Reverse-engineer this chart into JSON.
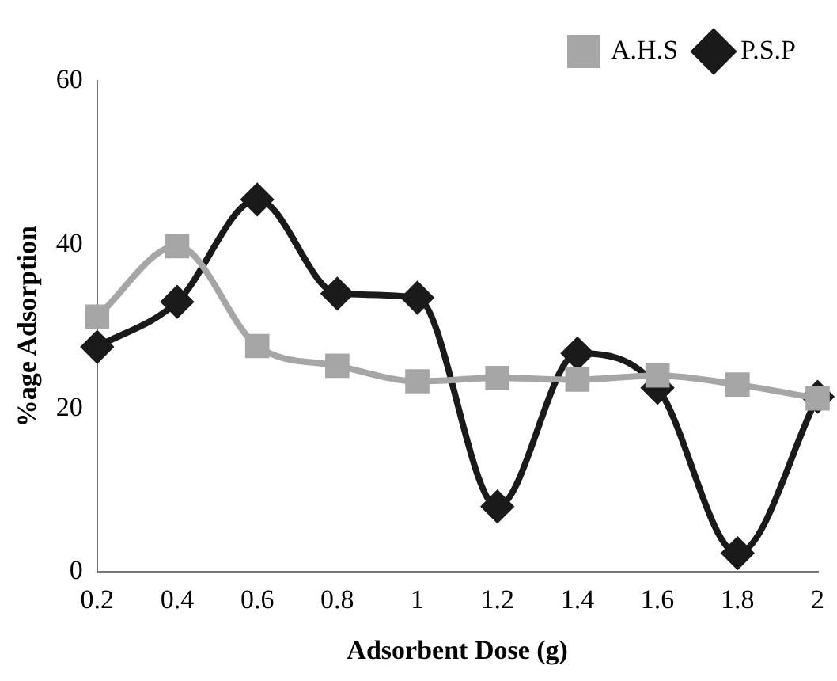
{
  "chart_data": {
    "type": "line",
    "xlabel": "Adsorbent Dose (g)",
    "ylabel": "%age Adsorption",
    "categories": [
      "0.2",
      "0.4",
      "0.6",
      "0.8",
      "1",
      "1.2",
      "1.4",
      "1.6",
      "1.8",
      "2"
    ],
    "series": [
      {
        "name": "P.S.P",
        "color": "#1a1a1a",
        "marker": "diamond",
        "values": [
          27.5,
          33,
          45.5,
          34,
          33.5,
          8,
          26.7,
          22.5,
          2.3,
          21.4
        ]
      },
      {
        "name": "A.H.S",
        "color": "#a6a6a6",
        "marker": "square",
        "values": [
          31.2,
          39.8,
          27.6,
          25.2,
          23.3,
          23.7,
          23.5,
          24,
          22.9,
          21.2
        ]
      }
    ],
    "ylim": [
      0,
      60
    ],
    "yticks": [
      0,
      20,
      40,
      60
    ],
    "grid": false,
    "legend": "top right",
    "line_style": "solid"
  }
}
